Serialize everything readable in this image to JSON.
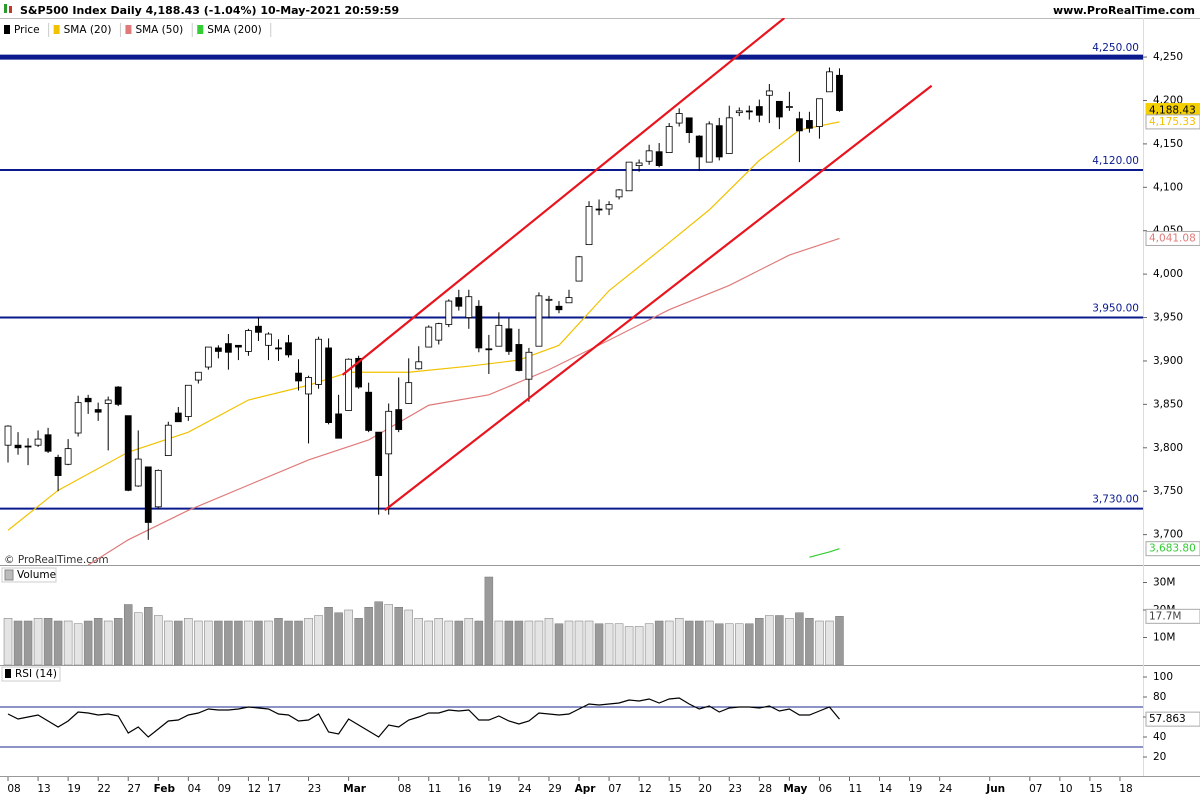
{
  "header": {
    "title": "S&P500 Index Daily 4,188.43 (-1.04%) 10-May-2021 20:59:59",
    "site": "www.ProRealTime.com",
    "watermark": "© ProRealTime.com"
  },
  "chart_data": [
    {
      "type": "candlestick",
      "xlim": [
        -0.8,
        113.3
      ],
      "xticks": [
        {
          "value": 0,
          "label": "08"
        },
        {
          "value": 3,
          "label": "13"
        },
        {
          "value": 6,
          "label": "19"
        },
        {
          "value": 9,
          "label": "22"
        },
        {
          "value": 12,
          "label": "27"
        },
        {
          "value": 15,
          "label": "Feb"
        },
        {
          "value": 18,
          "label": "04"
        },
        {
          "value": 21,
          "label": "09"
        },
        {
          "value": 24,
          "label": "12"
        },
        {
          "value": 26,
          "label": "17"
        },
        {
          "value": 30,
          "label": "23"
        },
        {
          "value": 34,
          "label": "Mar"
        },
        {
          "value": 39,
          "label": "08"
        },
        {
          "value": 42,
          "label": "11"
        },
        {
          "value": 45,
          "label": "16"
        },
        {
          "value": 48,
          "label": "19"
        },
        {
          "value": 51,
          "label": "24"
        },
        {
          "value": 54,
          "label": "29"
        },
        {
          "value": 57,
          "label": "Apr"
        },
        {
          "value": 60,
          "label": "07"
        },
        {
          "value": 63,
          "label": "12"
        },
        {
          "value": 66,
          "label": "15"
        },
        {
          "value": 69,
          "label": "20"
        },
        {
          "value": 72,
          "label": "23"
        },
        {
          "value": 75,
          "label": "28"
        },
        {
          "value": 78,
          "label": "May"
        },
        {
          "value": 81,
          "label": "06"
        },
        {
          "value": 84,
          "label": "11"
        },
        {
          "value": 87,
          "label": "14"
        },
        {
          "value": 90,
          "label": "19"
        },
        {
          "value": 93,
          "label": "24"
        },
        {
          "value": 98,
          "label": "Jun"
        },
        {
          "value": 102,
          "label": "07"
        },
        {
          "value": 105,
          "label": "10"
        },
        {
          "value": 108,
          "label": "15"
        },
        {
          "value": 111,
          "label": "18"
        }
      ],
      "ylim": [
        3665,
        4295
      ],
      "yticks": [
        {
          "value": 3700,
          "label": "3,700"
        },
        {
          "value": 3750,
          "label": "3,750"
        },
        {
          "value": 3800,
          "label": "3,800"
        },
        {
          "value": 3850,
          "label": "3,850"
        },
        {
          "value": 3900,
          "label": "3,900"
        },
        {
          "value": 3950,
          "label": "3,950"
        },
        {
          "value": 4000,
          "label": "4,000"
        },
        {
          "value": 4050,
          "label": "4,050"
        },
        {
          "value": 4100,
          "label": "4,100"
        },
        {
          "value": 4150,
          "label": "4,150"
        },
        {
          "value": 4200,
          "label": "4,200"
        },
        {
          "value": 4250,
          "label": "4,250"
        }
      ],
      "levels": [
        {
          "value": 4250,
          "label": "4,250.00"
        },
        {
          "value": 4120,
          "label": "4,120.00"
        },
        {
          "value": 3950,
          "label": "3,950.00"
        },
        {
          "value": 3730,
          "label": "3,730.00"
        }
      ],
      "level_color": "#0a1a8c",
      "trendlines": [
        {
          "color": "#e8141e",
          "x": [
            33.4,
            77.5
          ],
          "values": [
            3884,
            4295
          ]
        },
        {
          "color": "#e8141e",
          "x": [
            37.6,
            92.2
          ],
          "values": [
            3728,
            4217
          ]
        }
      ],
      "series": [
        {
          "name": "Price",
          "color": "#000000",
          "last_label": "4,188.43",
          "open": [
            3803,
            3803,
            3802,
            3803,
            3815,
            3789,
            3781,
            3817,
            3857,
            3844,
            3851,
            3870,
            3837,
            3756,
            3778,
            3732,
            3791,
            3840,
            3836,
            3878,
            3893,
            3915,
            3920,
            3918,
            3911,
            3940,
            3918,
            3915,
            3921,
            3886,
            3862,
            3873,
            3915,
            3839,
            3843,
            3903,
            3864,
            3818,
            3793,
            3844,
            3851,
            3891,
            3916,
            3924,
            3942,
            3973,
            3950,
            3963,
            3914,
            3917,
            3937,
            3919,
            3879,
            3917,
            3970,
            3963,
            3967,
            3992,
            4034,
            4075,
            4075,
            4089,
            4096,
            4125,
            4130,
            4141,
            4140,
            4174,
            4180,
            4159,
            4129,
            4171,
            4139,
            4186,
            4188,
            4193,
            4206,
            4199,
            4192,
            4179,
            4177,
            4170,
            4210,
            4229
          ],
          "high": [
            3826,
            3818,
            3811,
            3820,
            3823,
            3792,
            3810,
            3860,
            3861,
            3852,
            3859,
            3871,
            3837,
            3820,
            3778,
            3775,
            3830,
            3847,
            3872,
            3887,
            3916,
            3918,
            3931,
            3918,
            3937,
            3950,
            3933,
            3925,
            3930,
            3902,
            3883,
            3928,
            3926,
            3861,
            3903,
            3906,
            3875,
            3818,
            3851,
            3881,
            3903,
            3917,
            3941,
            3944,
            3971,
            3982,
            3982,
            3970,
            3930,
            3956,
            3949,
            3937,
            3915,
            3979,
            3975,
            3969,
            3982,
            4021,
            4084,
            4086,
            4084,
            4098,
            4129,
            4132,
            4149,
            4151,
            4174,
            4191,
            4180,
            4160,
            4176,
            4180,
            4194,
            4192,
            4194,
            4201,
            4219,
            4199,
            4210,
            4187,
            4187,
            4202,
            4238,
            4237
          ],
          "low": [
            3783,
            3792,
            3780,
            3801,
            3794,
            3750,
            3780,
            3813,
            3839,
            3831,
            3797,
            3848,
            3750,
            3755,
            3694,
            3730,
            3791,
            3830,
            3831,
            3874,
            3890,
            3903,
            3890,
            3901,
            3906,
            3923,
            3901,
            3900,
            3904,
            3866,
            3805,
            3868,
            3827,
            3811,
            3843,
            3868,
            3818,
            3723,
            3723,
            3818,
            3851,
            3890,
            3916,
            3919,
            3939,
            3958,
            3937,
            3910,
            3885,
            3917,
            3907,
            3888,
            3853,
            3917,
            3949,
            3955,
            3967,
            3992,
            4034,
            4068,
            4068,
            4086,
            4096,
            4118,
            4126,
            4123,
            4140,
            4170,
            4151,
            4119,
            4129,
            4131,
            4139,
            4182,
            4178,
            4175,
            4174,
            4167,
            4188,
            4129,
            4163,
            4156,
            4210,
            4187
          ],
          "close": [
            3825,
            3800,
            3801,
            3810,
            3796,
            3768,
            3799,
            3852,
            3853,
            3841,
            3855,
            3850,
            3751,
            3787,
            3714,
            3774,
            3826,
            3830,
            3872,
            3887,
            3916,
            3911,
            3910,
            3916,
            3935,
            3933,
            3931,
            3914,
            3907,
            3877,
            3881,
            3925,
            3829,
            3811,
            3902,
            3870,
            3820,
            3768,
            3842,
            3821,
            3875,
            3899,
            3939,
            3943,
            3969,
            3963,
            3974,
            3915,
            3913,
            3941,
            3911,
            3889,
            3910,
            3975,
            3971,
            3959,
            3973,
            4020,
            4078,
            4074,
            4080,
            4097,
            4129,
            4128,
            4142,
            4125,
            4170,
            4185,
            4163,
            4135,
            4173,
            4135,
            4180,
            4188,
            4187,
            4183,
            4211,
            4181,
            4193,
            4165,
            4168,
            4202,
            4233,
            4188.43
          ]
        },
        {
          "name": "SMA (20)",
          "color": "#f2c200",
          "last_label": "4,175.33",
          "x": [
            0,
            5,
            12,
            18,
            24,
            30,
            34,
            40,
            46,
            51,
            55,
            60,
            65,
            70,
            75,
            79,
            83
          ],
          "values": [
            3705,
            3751,
            3795,
            3818,
            3855,
            3872,
            3887,
            3887,
            3894,
            3901,
            3918,
            3981,
            4027,
            4074,
            4131,
            4166,
            4175.33
          ]
        },
        {
          "name": "SMA (50)",
          "color": "#e07a7a",
          "last_label": "4,041.08",
          "x": [
            8,
            12,
            18,
            24,
            30,
            36,
            42,
            48,
            54,
            60,
            66,
            72,
            78,
            83
          ],
          "values": [
            3665,
            3694,
            3728,
            3757,
            3786,
            3809,
            3849,
            3861,
            3890,
            3924,
            3959,
            3987,
            4022,
            4041.08
          ]
        },
        {
          "name": "SMA (200)",
          "color": "#33cc33",
          "last_label": "3,683.80",
          "x": [
            80,
            81,
            82,
            83
          ],
          "values": [
            3674,
            3677,
            3680,
            3683.8
          ]
        }
      ]
    },
    {
      "type": "bar",
      "ylim": [
        0,
        36
      ],
      "yticks": [
        {
          "value": 10,
          "label": "10M"
        },
        {
          "value": 20,
          "label": "20M"
        },
        {
          "value": 30,
          "label": "30M"
        }
      ],
      "series": [
        {
          "name": "Volume",
          "color": "#9a9a9a",
          "last_label": "17.7M",
          "values": [
            17,
            16,
            16,
            17,
            17,
            16,
            16,
            15,
            16,
            17,
            16,
            17,
            22,
            19,
            21,
            18,
            16,
            16,
            17,
            16,
            16,
            16,
            16,
            16,
            16,
            16,
            16,
            17,
            16,
            16,
            17,
            18,
            21,
            19,
            20,
            17,
            21,
            23,
            22,
            21,
            20,
            17,
            16,
            17,
            16,
            16,
            17,
            16,
            32,
            16,
            16,
            16,
            16,
            16,
            17,
            15,
            16,
            16,
            16,
            15,
            15,
            15,
            14,
            14,
            15,
            16,
            16,
            17,
            16,
            16,
            16,
            15,
            15,
            15,
            15,
            17,
            18,
            18,
            17,
            19,
            17,
            16,
            16,
            17.7
          ]
        }
      ]
    },
    {
      "type": "line",
      "ylim": [
        7,
        111
      ],
      "yticks": [
        20,
        40,
        60,
        80,
        100
      ],
      "bands": [
        30,
        70
      ],
      "band_color": "#1a2a8c",
      "series": [
        {
          "name": "RSI (14)",
          "color": "#000000",
          "values": [
            63,
            58,
            60,
            62,
            56,
            50,
            56,
            65,
            64,
            62,
            63,
            61,
            44,
            50,
            40,
            48,
            56,
            57,
            62,
            64,
            68,
            67,
            67,
            68,
            70,
            69,
            68,
            63,
            62,
            56,
            57,
            63,
            45,
            43,
            58,
            52,
            46,
            40,
            52,
            50,
            57,
            60,
            64,
            64,
            67,
            66,
            67,
            57,
            57,
            61,
            56,
            53,
            56,
            64,
            63,
            62,
            63,
            68,
            73,
            72,
            73,
            74,
            77,
            76,
            78,
            74,
            78,
            79,
            73,
            68,
            71,
            65,
            69,
            70,
            70,
            69,
            71,
            66,
            68,
            62,
            62,
            66,
            70,
            57.863
          ]
        }
      ]
    }
  ]
}
